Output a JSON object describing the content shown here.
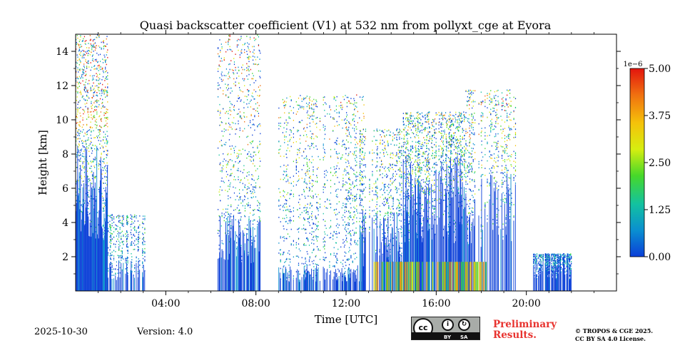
{
  "chart_data": {
    "type": "heatmap",
    "title": "Quasi backscatter coefficient (V1) at 532 nm from pollyxt_cge at Evora",
    "xlabel": "Time [UTC]",
    "ylabel": "Height [km]",
    "xlim_hours": [
      0,
      24
    ],
    "ylim": [
      0,
      15
    ],
    "x_ticks": [
      {
        "hour": 4,
        "label": "04:00"
      },
      {
        "hour": 8,
        "label": "08:00"
      },
      {
        "hour": 12,
        "label": "12:00"
      },
      {
        "hour": 16,
        "label": "16:00"
      },
      {
        "hour": 20,
        "label": "20:00"
      }
    ],
    "y_ticks": [
      {
        "value": 2,
        "label": "2"
      },
      {
        "value": 4,
        "label": "4"
      },
      {
        "value": 6,
        "label": "6"
      },
      {
        "value": 8,
        "label": "8"
      },
      {
        "value": 10,
        "label": "10"
      },
      {
        "value": 12,
        "label": "12"
      },
      {
        "value": 14,
        "label": "14"
      }
    ],
    "colorbar": {
      "min": 0.0,
      "max": 5.0,
      "scale_label": "1e−6",
      "ticks": [
        {
          "value": 0.0,
          "label": "0.00"
        },
        {
          "value": 1.25,
          "label": "1.25"
        },
        {
          "value": 2.5,
          "label": "2.50"
        },
        {
          "value": 3.75,
          "label": "3.75"
        },
        {
          "value": 5.0,
          "label": "5.00"
        }
      ],
      "colors": [
        "#0b3fd8",
        "#0a8fd0",
        "#13c2a0",
        "#46d82a",
        "#d6ee10",
        "#f5c20a",
        "#f07010",
        "#e3150e"
      ]
    },
    "profiles": [
      {
        "start_h": 0.0,
        "end_h": 1.4,
        "base_top_km": 8.5,
        "sparse_top_km": 15.0,
        "density": 1.0,
        "layer_km": 10.1,
        "note": "dense low signal plus 10 km layer"
      },
      {
        "start_h": 1.4,
        "end_h": 3.1,
        "base_top_km": 1.8,
        "sparse_top_km": 4.5,
        "density": 0.25
      },
      {
        "start_h": 6.3,
        "end_h": 8.2,
        "base_top_km": 4.5,
        "sparse_top_km": 15.0,
        "density": 0.6
      },
      {
        "start_h": 9.0,
        "end_h": 12.8,
        "base_top_km": 1.5,
        "sparse_top_km": 11.5,
        "density": 0.45
      },
      {
        "start_h": 12.6,
        "end_h": 14.5,
        "base_top_km": 4.8,
        "sparse_top_km": 9.5,
        "density": 0.4
      },
      {
        "start_h": 14.5,
        "end_h": 17.3,
        "base_top_km": 8.0,
        "sparse_top_km": 10.5,
        "density": 0.7
      },
      {
        "start_h": 17.3,
        "end_h": 19.5,
        "base_top_km": 7.2,
        "sparse_top_km": 11.8,
        "density": 0.3
      },
      {
        "start_h": 20.3,
        "end_h": 22.0,
        "base_top_km": 1.8,
        "sparse_top_km": 2.2,
        "density": 0.6
      }
    ]
  },
  "footer": {
    "date": "2025-10-30",
    "version": "Version: 4.0",
    "preliminary_line1": "Preliminary",
    "preliminary_line2": "Results.",
    "copyright_line1": "© TROPOS & CGE 2025.",
    "copyright_line2": "CC BY SA 4.0 License.",
    "cc_label": "cc",
    "by_label": "BY",
    "sa_label": "SA"
  }
}
